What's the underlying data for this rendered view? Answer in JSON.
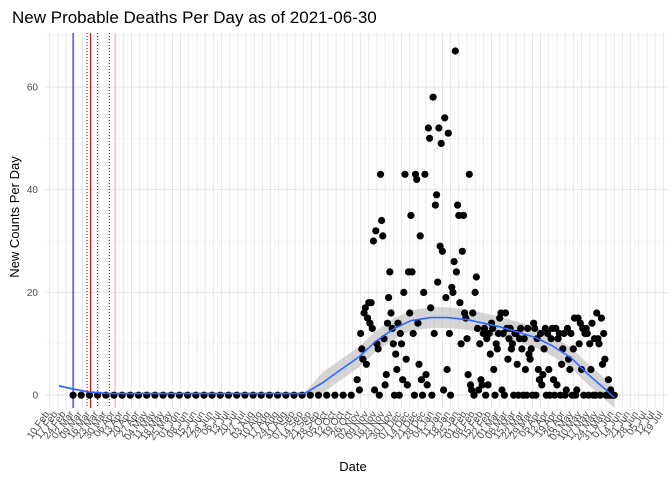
{
  "chart_data": {
    "type": "scatter",
    "title": "New Probable Deaths Per Day as of 2021-06-30",
    "xlabel": "Date",
    "ylabel": "New Counts Per Day",
    "x_start": "2020-02-10",
    "x_end": "2021-07-19",
    "xlim": [
      "2020-02-06",
      "2021-07-23"
    ],
    "ylim": [
      -2.5,
      70.5
    ],
    "y_ticks": [
      0,
      20,
      40,
      60
    ],
    "grid": true,
    "x_tick_labels": [
      "10 Feb",
      "17 Feb",
      "24 Feb",
      "02 Mar",
      "09 Mar",
      "16 Mar",
      "23 Mar",
      "30 Mar",
      "06 Apr",
      "13 Apr",
      "20 Apr",
      "27 Apr",
      "04 May",
      "11 May",
      "18 May",
      "25 May",
      "01 Jun",
      "08 Jun",
      "15 Jun",
      "22 Jun",
      "29 Jun",
      "06 Jul",
      "13 Jul",
      "20 Jul",
      "27 Jul",
      "03 Aug",
      "10 Aug",
      "17 Aug",
      "24 Aug",
      "31 Aug",
      "07 Sep",
      "14 Sep",
      "21 Sep",
      "28 Sep",
      "05 Oct",
      "12 Oct",
      "19 Oct",
      "26 Oct",
      "02 Nov",
      "09 Nov",
      "16 Nov",
      "23 Nov",
      "30 Nov",
      "07 Dec",
      "14 Dec",
      "21 Dec",
      "28 Dec",
      "04 Jan",
      "11 Jan",
      "18 Jan",
      "25 Jan",
      "01 Feb",
      "08 Feb",
      "15 Feb",
      "22 Feb",
      "01 Mar",
      "08 Mar",
      "15 Mar",
      "22 Mar",
      "29 Mar",
      "05 Apr",
      "12 Apr",
      "19 Apr",
      "26 Apr",
      "03 May",
      "10 May",
      "17 May",
      "24 May",
      "31 May",
      "07 Jun",
      "14 Jun",
      "21 Jun",
      "28 Jun",
      "05 Jul",
      "12 Jul",
      "19 Jul"
    ],
    "vertical_lines": [
      {
        "date": "2020-03-01",
        "color": "#0000ff",
        "style": "solid"
      },
      {
        "date": "2020-03-13",
        "color": "#8b0000",
        "style": "dotted"
      },
      {
        "date": "2020-03-16",
        "color": "#cc0000",
        "style": "solid"
      },
      {
        "date": "2020-03-22",
        "color": "#8b0000",
        "style": "dotted"
      },
      {
        "date": "2020-04-01",
        "color": "#8b0000",
        "style": "dotted"
      },
      {
        "date": "2020-04-06",
        "color": "#f4a6a6",
        "style": "solid"
      }
    ],
    "points": [
      [
        "2020-03-01",
        0
      ],
      [
        "2020-03-08",
        0
      ],
      [
        "2020-03-15",
        0
      ],
      [
        "2020-03-22",
        0
      ],
      [
        "2020-03-29",
        0
      ],
      [
        "2020-04-05",
        0
      ],
      [
        "2020-04-12",
        0
      ],
      [
        "2020-04-19",
        0
      ],
      [
        "2020-04-26",
        0
      ],
      [
        "2020-05-03",
        0
      ],
      [
        "2020-05-10",
        0
      ],
      [
        "2020-05-17",
        0
      ],
      [
        "2020-05-24",
        0
      ],
      [
        "2020-05-31",
        0
      ],
      [
        "2020-06-07",
        0
      ],
      [
        "2020-06-14",
        0
      ],
      [
        "2020-06-21",
        0
      ],
      [
        "2020-06-28",
        0
      ],
      [
        "2020-07-05",
        0
      ],
      [
        "2020-07-12",
        0
      ],
      [
        "2020-07-19",
        0
      ],
      [
        "2020-07-26",
        0
      ],
      [
        "2020-08-02",
        0
      ],
      [
        "2020-08-09",
        0
      ],
      [
        "2020-08-16",
        0
      ],
      [
        "2020-08-23",
        0
      ],
      [
        "2020-08-30",
        0
      ],
      [
        "2020-09-06",
        0
      ],
      [
        "2020-09-13",
        0
      ],
      [
        "2020-09-20",
        0
      ],
      [
        "2020-09-27",
        0
      ],
      [
        "2020-10-04",
        0
      ],
      [
        "2020-10-11",
        0
      ],
      [
        "2020-10-18",
        0
      ],
      [
        "2020-10-25",
        0
      ],
      [
        "2020-10-30",
        3
      ],
      [
        "2020-11-01",
        1
      ],
      [
        "2020-11-02",
        12
      ],
      [
        "2020-11-03",
        9
      ],
      [
        "2020-11-04",
        7
      ],
      [
        "2020-11-05",
        16
      ],
      [
        "2020-11-06",
        17
      ],
      [
        "2020-11-07",
        6
      ],
      [
        "2020-11-08",
        15
      ],
      [
        "2020-11-09",
        18
      ],
      [
        "2020-11-10",
        14
      ],
      [
        "2020-11-11",
        18
      ],
      [
        "2020-11-12",
        13
      ],
      [
        "2020-11-13",
        30
      ],
      [
        "2020-11-14",
        1
      ],
      [
        "2020-11-15",
        32
      ],
      [
        "2020-11-16",
        10
      ],
      [
        "2020-11-17",
        9
      ],
      [
        "2020-11-18",
        0
      ],
      [
        "2020-11-19",
        43
      ],
      [
        "2020-11-20",
        34
      ],
      [
        "2020-11-21",
        31
      ],
      [
        "2020-11-22",
        11
      ],
      [
        "2020-11-23",
        2
      ],
      [
        "2020-11-24",
        4
      ],
      [
        "2020-11-25",
        14
      ],
      [
        "2020-11-26",
        19
      ],
      [
        "2020-11-27",
        24
      ],
      [
        "2020-11-28",
        16
      ],
      [
        "2020-11-29",
        13
      ],
      [
        "2020-11-30",
        10
      ],
      [
        "2020-12-01",
        0
      ],
      [
        "2020-12-02",
        8
      ],
      [
        "2020-12-03",
        5
      ],
      [
        "2020-12-04",
        14
      ],
      [
        "2020-12-05",
        0
      ],
      [
        "2020-12-06",
        12
      ],
      [
        "2020-12-07",
        10
      ],
      [
        "2020-12-08",
        3
      ],
      [
        "2020-12-09",
        20
      ],
      [
        "2020-12-10",
        43
      ],
      [
        "2020-12-11",
        7
      ],
      [
        "2020-12-12",
        2
      ],
      [
        "2020-12-13",
        24
      ],
      [
        "2020-12-14",
        16
      ],
      [
        "2020-12-15",
        35
      ],
      [
        "2020-12-16",
        24
      ],
      [
        "2020-12-17",
        12
      ],
      [
        "2020-12-18",
        0
      ],
      [
        "2020-12-19",
        43
      ],
      [
        "2020-12-20",
        42
      ],
      [
        "2020-12-21",
        14
      ],
      [
        "2020-12-22",
        6
      ],
      [
        "2020-12-23",
        31
      ],
      [
        "2020-12-24",
        3
      ],
      [
        "2020-12-25",
        0
      ],
      [
        "2020-12-26",
        20
      ],
      [
        "2020-12-27",
        43
      ],
      [
        "2020-12-28",
        4
      ],
      [
        "2020-12-29",
        2
      ],
      [
        "2020-12-30",
        52
      ],
      [
        "2020-12-31",
        50
      ],
      [
        "2021-01-01",
        17
      ],
      [
        "2021-01-02",
        0
      ],
      [
        "2021-01-03",
        58
      ],
      [
        "2021-01-04",
        12
      ],
      [
        "2021-01-05",
        37
      ],
      [
        "2021-01-06",
        39
      ],
      [
        "2021-01-07",
        22
      ],
      [
        "2021-01-08",
        52
      ],
      [
        "2021-01-09",
        29
      ],
      [
        "2021-01-10",
        49
      ],
      [
        "2021-01-11",
        28
      ],
      [
        "2021-01-12",
        1
      ],
      [
        "2021-01-13",
        54
      ],
      [
        "2021-01-14",
        19
      ],
      [
        "2021-01-15",
        5
      ],
      [
        "2021-01-16",
        51
      ],
      [
        "2021-01-17",
        12
      ],
      [
        "2021-01-18",
        0
      ],
      [
        "2021-01-19",
        21
      ],
      [
        "2021-01-20",
        20
      ],
      [
        "2021-01-21",
        26
      ],
      [
        "2021-01-22",
        67
      ],
      [
        "2021-01-23",
        24
      ],
      [
        "2021-01-24",
        37
      ],
      [
        "2021-01-25",
        35
      ],
      [
        "2021-01-26",
        18
      ],
      [
        "2021-01-27",
        10
      ],
      [
        "2021-01-28",
        28
      ],
      [
        "2021-01-29",
        35
      ],
      [
        "2021-01-30",
        16
      ],
      [
        "2021-01-31",
        15
      ],
      [
        "2021-02-01",
        11
      ],
      [
        "2021-02-02",
        4
      ],
      [
        "2021-02-03",
        43
      ],
      [
        "2021-02-04",
        2
      ],
      [
        "2021-02-05",
        1
      ],
      [
        "2021-02-06",
        16
      ],
      [
        "2021-02-07",
        0
      ],
      [
        "2021-02-08",
        20
      ],
      [
        "2021-02-09",
        23
      ],
      [
        "2021-02-10",
        13
      ],
      [
        "2021-02-11",
        1
      ],
      [
        "2021-02-12",
        10
      ],
      [
        "2021-02-13",
        3
      ],
      [
        "2021-02-14",
        2
      ],
      [
        "2021-02-15",
        12
      ],
      [
        "2021-02-16",
        13
      ],
      [
        "2021-02-17",
        0
      ],
      [
        "2021-02-18",
        11
      ],
      [
        "2021-02-19",
        2
      ],
      [
        "2021-02-20",
        12
      ],
      [
        "2021-02-21",
        8
      ],
      [
        "2021-02-22",
        14
      ],
      [
        "2021-02-23",
        13
      ],
      [
        "2021-02-24",
        5
      ],
      [
        "2021-02-25",
        0
      ],
      [
        "2021-02-26",
        10
      ],
      [
        "2021-02-27",
        9
      ],
      [
        "2021-02-28",
        12
      ],
      [
        "2021-03-01",
        15
      ],
      [
        "2021-03-02",
        16
      ],
      [
        "2021-03-03",
        1
      ],
      [
        "2021-03-04",
        12
      ],
      [
        "2021-03-05",
        0
      ],
      [
        "2021-03-06",
        16
      ],
      [
        "2021-03-07",
        13
      ],
      [
        "2021-03-08",
        7
      ],
      [
        "2021-03-09",
        11
      ],
      [
        "2021-03-10",
        13
      ],
      [
        "2021-03-11",
        9
      ],
      [
        "2021-03-12",
        10
      ],
      [
        "2021-03-13",
        0
      ],
      [
        "2021-03-14",
        12
      ],
      [
        "2021-03-15",
        12
      ],
      [
        "2021-03-16",
        6
      ],
      [
        "2021-03-17",
        0
      ],
      [
        "2021-03-18",
        11
      ],
      [
        "2021-03-19",
        13
      ],
      [
        "2021-03-20",
        9
      ],
      [
        "2021-03-21",
        0
      ],
      [
        "2021-03-22",
        11
      ],
      [
        "2021-03-23",
        5
      ],
      [
        "2021-03-24",
        0
      ],
      [
        "2021-03-25",
        13
      ],
      [
        "2021-03-26",
        8
      ],
      [
        "2021-03-27",
        7
      ],
      [
        "2021-03-28",
        9
      ],
      [
        "2021-03-29",
        0
      ],
      [
        "2021-03-30",
        14
      ],
      [
        "2021-03-31",
        13
      ],
      [
        "2021-04-01",
        0
      ],
      [
        "2021-04-02",
        11
      ],
      [
        "2021-04-03",
        5
      ],
      [
        "2021-04-04",
        3
      ],
      [
        "2021-04-05",
        12
      ],
      [
        "2021-04-06",
        2
      ],
      [
        "2021-04-07",
        4
      ],
      [
        "2021-04-08",
        9
      ],
      [
        "2021-04-09",
        13
      ],
      [
        "2021-04-10",
        0
      ],
      [
        "2021-04-11",
        12
      ],
      [
        "2021-04-12",
        5
      ],
      [
        "2021-04-13",
        0
      ],
      [
        "2021-04-14",
        11
      ],
      [
        "2021-04-15",
        13
      ],
      [
        "2021-04-16",
        3
      ],
      [
        "2021-04-17",
        0
      ],
      [
        "2021-04-18",
        13
      ],
      [
        "2021-04-19",
        2
      ],
      [
        "2021-04-20",
        11
      ],
      [
        "2021-04-21",
        12
      ],
      [
        "2021-04-22",
        0
      ],
      [
        "2021-04-23",
        6
      ],
      [
        "2021-04-24",
        9
      ],
      [
        "2021-04-25",
        12
      ],
      [
        "2021-04-26",
        0
      ],
      [
        "2021-04-27",
        1
      ],
      [
        "2021-04-28",
        13
      ],
      [
        "2021-04-29",
        7
      ],
      [
        "2021-04-30",
        5
      ],
      [
        "2021-05-01",
        12
      ],
      [
        "2021-05-02",
        0
      ],
      [
        "2021-05-03",
        9
      ],
      [
        "2021-05-04",
        15
      ],
      [
        "2021-05-05",
        0
      ],
      [
        "2021-05-06",
        1
      ],
      [
        "2021-05-07",
        15
      ],
      [
        "2021-05-08",
        10
      ],
      [
        "2021-05-09",
        14
      ],
      [
        "2021-05-10",
        5
      ],
      [
        "2021-05-11",
        13
      ],
      [
        "2021-05-12",
        0
      ],
      [
        "2021-05-13",
        12
      ],
      [
        "2021-05-14",
        13
      ],
      [
        "2021-05-15",
        12
      ],
      [
        "2021-05-16",
        0
      ],
      [
        "2021-05-17",
        10
      ],
      [
        "2021-05-18",
        5
      ],
      [
        "2021-05-19",
        14
      ],
      [
        "2021-05-20",
        0
      ],
      [
        "2021-05-21",
        11
      ],
      [
        "2021-05-22",
        0
      ],
      [
        "2021-05-23",
        16
      ],
      [
        "2021-05-24",
        11
      ],
      [
        "2021-05-25",
        10
      ],
      [
        "2021-05-26",
        0
      ],
      [
        "2021-05-27",
        15
      ],
      [
        "2021-05-28",
        6
      ],
      [
        "2021-05-29",
        12
      ],
      [
        "2021-05-30",
        7
      ],
      [
        "2021-05-31",
        0
      ],
      [
        "2021-06-01",
        0
      ],
      [
        "2021-06-02",
        3
      ],
      [
        "2021-06-03",
        0
      ],
      [
        "2021-06-04",
        1
      ],
      [
        "2021-06-05",
        0
      ],
      [
        "2021-06-06",
        0
      ],
      [
        "2021-06-07",
        0
      ]
    ],
    "smooth_line": [
      [
        "2020-02-18",
        1.8
      ],
      [
        "2020-03-01",
        1.2
      ],
      [
        "2020-03-15",
        0.6
      ],
      [
        "2020-04-01",
        0.3
      ],
      [
        "2020-05-01",
        0.3
      ],
      [
        "2020-06-01",
        0.3
      ],
      [
        "2020-07-01",
        0.3
      ],
      [
        "2020-08-01",
        0.3
      ],
      [
        "2020-09-01",
        0.3
      ],
      [
        "2020-09-15",
        0.3
      ],
      [
        "2020-10-01",
        2.5
      ],
      [
        "2020-10-15",
        4.8
      ],
      [
        "2020-11-01",
        7.5
      ],
      [
        "2020-11-15",
        10.5
      ],
      [
        "2020-12-01",
        13.0
      ],
      [
        "2020-12-15",
        14.5
      ],
      [
        "2021-01-01",
        15.1
      ],
      [
        "2021-01-15",
        15.1
      ],
      [
        "2021-02-01",
        14.7
      ],
      [
        "2021-02-15",
        14.0
      ],
      [
        "2021-03-01",
        13.3
      ],
      [
        "2021-03-15",
        12.4
      ],
      [
        "2021-04-01",
        11.2
      ],
      [
        "2021-04-15",
        9.6
      ],
      [
        "2021-05-01",
        7.3
      ],
      [
        "2021-05-15",
        4.2
      ],
      [
        "2021-06-01",
        0.8
      ],
      [
        "2021-06-07",
        -0.5
      ]
    ],
    "smooth_band_halfwidth": 2.0,
    "colors": {
      "points": "#000000",
      "smooth_line": "#3366ff",
      "smooth_band": "#bebebe",
      "grid_major": "#e5e5e5",
      "grid_minor": "#f2f2f2",
      "text": "#000000",
      "tick_text": "#4d4d4d"
    }
  }
}
